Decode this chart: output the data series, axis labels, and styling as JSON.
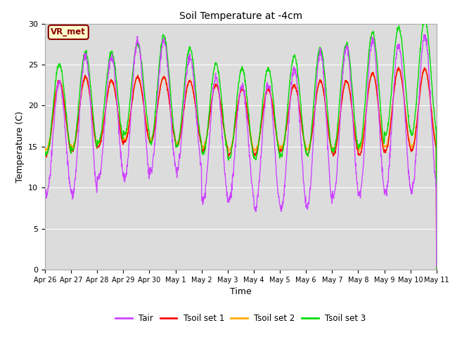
{
  "title": "Soil Temperature at -4cm",
  "xlabel": "Time",
  "ylabel": "Temperature (C)",
  "ylim": [
    0,
    30
  ],
  "yticks": [
    0,
    5,
    10,
    15,
    20,
    25,
    30
  ],
  "background_color": "#dcdcdc",
  "fig_background": "#ffffff",
  "x_labels": [
    "Apr 26",
    "Apr 27",
    "Apr 28",
    "Apr 29",
    "Apr 30",
    "May 1",
    "May 2",
    "May 3",
    "May 4",
    "May 5",
    "May 6",
    "May 7",
    "May 8",
    "May 9",
    "May 10",
    "May 11"
  ],
  "colors": {
    "Tair": "#cc44ff",
    "Tsoil1": "#ff0000",
    "Tsoil2": "#ffaa00",
    "Tsoil3": "#00dd00"
  },
  "annotation_text": "VR_met",
  "annotation_bg": "#ffffcc",
  "annotation_border": "#8b0000"
}
